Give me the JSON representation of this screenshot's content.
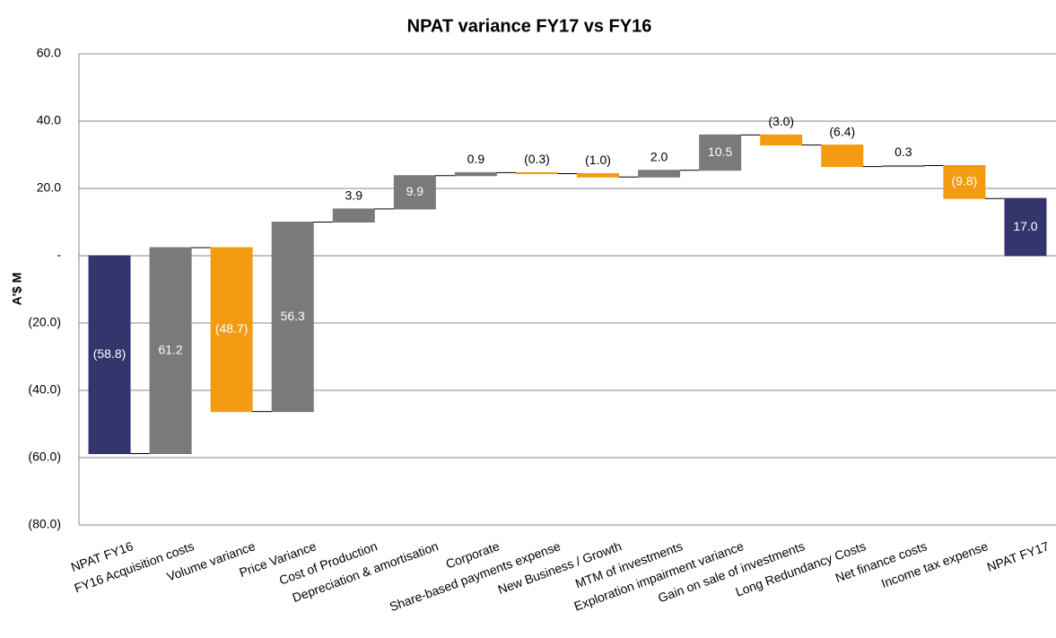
{
  "chart_data": {
    "type": "waterfall",
    "title": "NPAT variance FY17 vs FY16",
    "ylabel": "A'$ M",
    "categories": [
      "NPAT FY16",
      "FY16 Acquisition costs",
      "Volume variance",
      "Price Variance",
      "Cost of Production",
      "Depreciation & amortisation",
      "Corporate",
      "Share-based payments expense",
      "New Business / Growth",
      "MTM of investments",
      "Exploration impairment variance",
      "Gain on sale of investments",
      "Long Redundancy Costs",
      "Net finance costs",
      "Income tax expense",
      "NPAT FY17"
    ],
    "values": [
      -58.8,
      61.2,
      -48.7,
      56.3,
      3.9,
      9.9,
      0.9,
      -0.3,
      -1.0,
      2.0,
      10.5,
      -3.0,
      -6.4,
      0.3,
      -9.8,
      17.0
    ],
    "value_labels": [
      "(58.8)",
      "61.2",
      "(48.7)",
      "56.3",
      "3.9",
      "9.9",
      "0.9",
      "(0.3)",
      "(1.0)",
      "2.0",
      "10.5",
      "(3.0)",
      "(6.4)",
      "0.3",
      "(9.8)",
      "17.0"
    ],
    "measure": [
      "absolute",
      "relative",
      "relative",
      "relative",
      "relative",
      "relative",
      "relative",
      "relative",
      "relative",
      "relative",
      "relative",
      "relative",
      "relative",
      "relative",
      "relative",
      "absolute"
    ],
    "colors": {
      "total": "#35356e",
      "increase": "#7a7a7c",
      "decrease": "#f39c12"
    },
    "ylim": [
      -80,
      60
    ],
    "yticks": [
      {
        "value": -80,
        "label": "(80.0)"
      },
      {
        "value": -60,
        "label": "(60.0)"
      },
      {
        "value": -40,
        "label": "(40.0)"
      },
      {
        "value": -20,
        "label": "(20.0)"
      },
      {
        "value": 0,
        "label": "-"
      },
      {
        "value": 20,
        "label": "20.0"
      },
      {
        "value": 40,
        "label": "40.0"
      },
      {
        "value": 60,
        "label": "60.0"
      }
    ],
    "grid": true
  }
}
